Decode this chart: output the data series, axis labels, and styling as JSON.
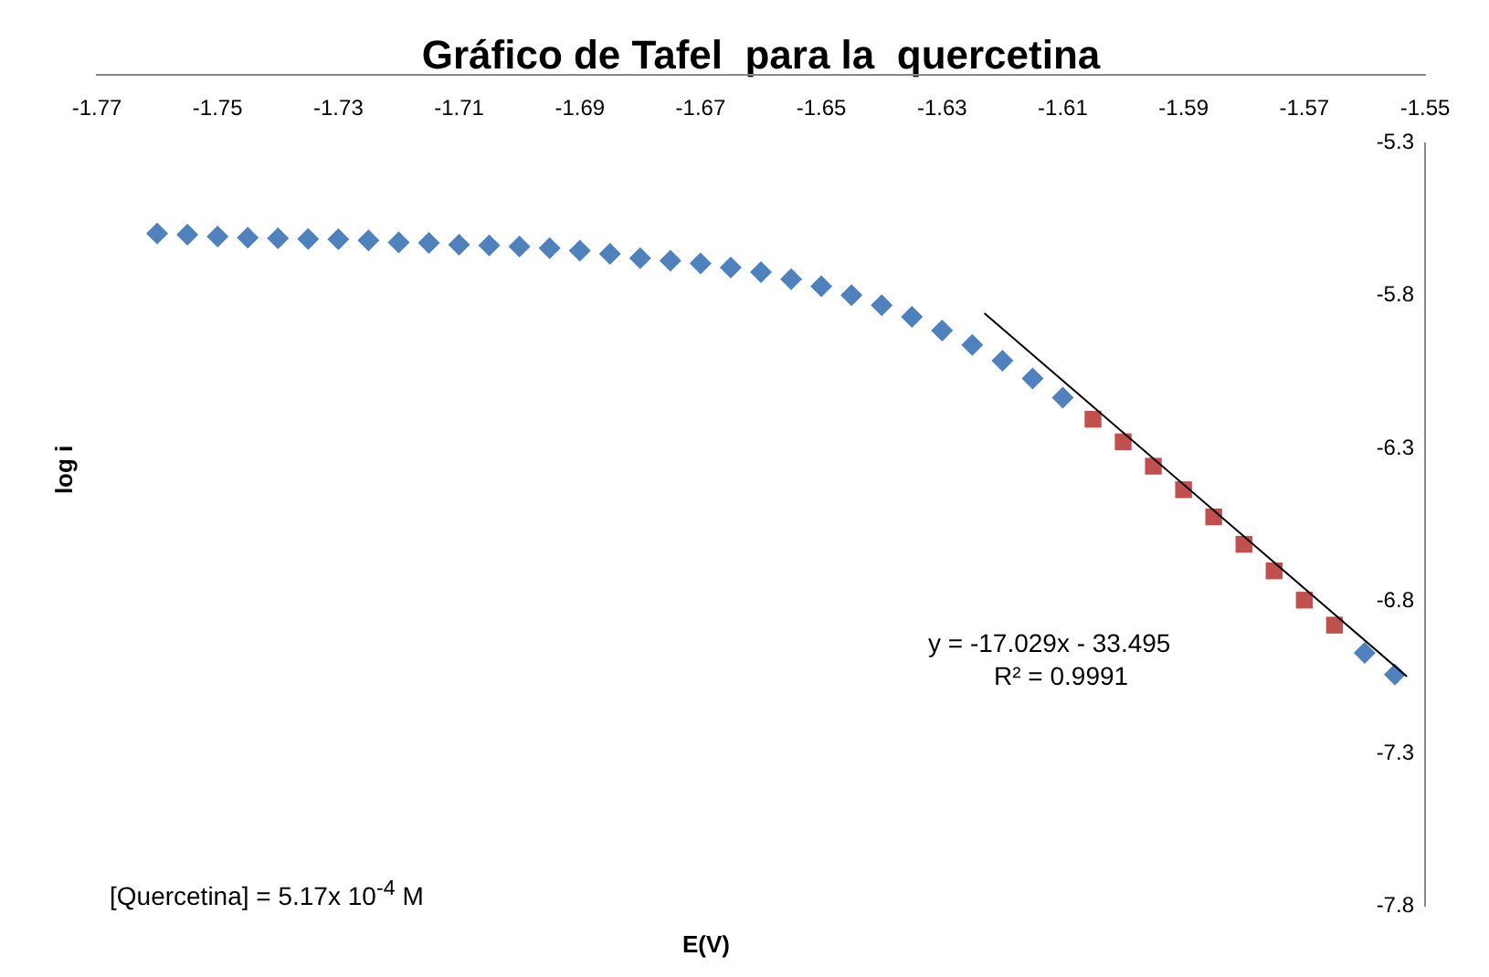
{
  "chart_data": {
    "type": "scatter",
    "title": "Gráfico de Tafel  para la  quercetina",
    "xlabel": "E(V)",
    "ylabel": "log i",
    "xlim": [
      -1.77,
      -1.55
    ],
    "xticks": [
      -1.77,
      -1.75,
      -1.73,
      -1.71,
      -1.69,
      -1.67,
      -1.65,
      -1.63,
      -1.61,
      -1.59,
      -1.57,
      -1.55
    ],
    "ylim": [
      -7.8,
      -5.3
    ],
    "yticks": [
      -7.8,
      -7.3,
      -6.8,
      -6.3,
      -5.8,
      -5.3
    ],
    "grid": false,
    "legend": false,
    "series": [
      {
        "type": "scatter",
        "marker": "diamond",
        "color": "#4f81bd",
        "x": [
          -1.76,
          -1.755,
          -1.75,
          -1.745,
          -1.74,
          -1.735,
          -1.73,
          -1.725,
          -1.72,
          -1.715,
          -1.71,
          -1.705,
          -1.7,
          -1.695,
          -1.69,
          -1.685,
          -1.68,
          -1.675,
          -1.67,
          -1.665,
          -1.66,
          -1.655,
          -1.65,
          -1.645,
          -1.64,
          -1.635,
          -1.63,
          -1.625,
          -1.62,
          -1.615,
          -1.61,
          -1.56,
          -1.555
        ],
        "values": [
          -5.596,
          -5.6,
          -5.606,
          -5.61,
          -5.612,
          -5.614,
          -5.615,
          -5.619,
          -5.625,
          -5.627,
          -5.633,
          -5.635,
          -5.639,
          -5.644,
          -5.652,
          -5.663,
          -5.677,
          -5.685,
          -5.694,
          -5.708,
          -5.723,
          -5.746,
          -5.769,
          -5.798,
          -5.831,
          -5.869,
          -5.914,
          -5.961,
          -6.013,
          -6.071,
          -6.134,
          -6.971,
          -7.042
        ]
      },
      {
        "type": "scatter",
        "marker": "square",
        "color": "#c0504d",
        "x": [
          -1.605,
          -1.6,
          -1.595,
          -1.59,
          -1.585,
          -1.58,
          -1.575,
          -1.57,
          -1.565
        ],
        "values": [
          -6.205,
          -6.279,
          -6.359,
          -6.436,
          -6.525,
          -6.615,
          -6.702,
          -6.798,
          -6.88
        ]
      },
      {
        "type": "line",
        "marker": "none",
        "line_style": "solid",
        "color": "#000000",
        "x": [
          -1.623,
          -1.553
        ],
        "values": [
          -5.857,
          -7.049
        ]
      }
    ],
    "annotations": [
      "y = -17.029x - 33.495",
      "R² = 0.9991",
      "[Quercetina] = 5.17x 10$^{-4}$ M"
    ]
  }
}
